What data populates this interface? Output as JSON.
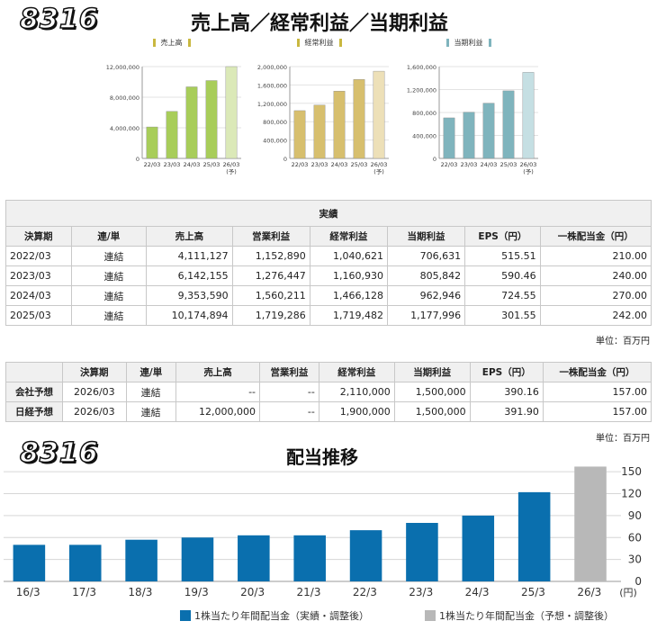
{
  "header": {
    "code": "8316",
    "title": "売上高／経常利益／当期利益"
  },
  "mini_charts": [
    {
      "title": "売上高",
      "color": "#a8cd5a",
      "forecast_color": "#dbe9b8",
      "bar_color": "#c9b840",
      "yticks": [
        "12,000,000",
        "8,000,000",
        "4,000,000",
        "0"
      ],
      "ymax": 12000000
    },
    {
      "title": "経常利益",
      "color": "#d7bf6e",
      "forecast_color": "#ede0b8",
      "bar_color": "#c9b840",
      "yticks": [
        "2,000,000",
        "1,600,000",
        "1,200,000",
        "800,000",
        "400,000",
        "0"
      ],
      "ymax": 2000000
    },
    {
      "title": "当期利益",
      "color": "#7fb4bd",
      "forecast_color": "#c5dfe3",
      "bar_color": "#7fb4bd",
      "yticks": [
        "1,600,000",
        "1,200,000",
        "800,000",
        "400,000",
        "0"
      ],
      "ymax": 1600000
    }
  ],
  "chart_data": [
    {
      "type": "bar",
      "title": "売上高",
      "categories": [
        "22/03",
        "23/03",
        "24/03",
        "25/03",
        "26/03"
      ],
      "forecast_note": "(予)",
      "values": [
        4111127,
        6142155,
        9353590,
        10174894,
        12000000
      ],
      "ylim": [
        0,
        12000000
      ]
    },
    {
      "type": "bar",
      "title": "経常利益",
      "categories": [
        "22/03",
        "23/03",
        "24/03",
        "25/03",
        "26/03"
      ],
      "forecast_note": "(予)",
      "values": [
        1040621,
        1160930,
        1466128,
        1719482,
        1900000
      ],
      "ylim": [
        0,
        2000000
      ]
    },
    {
      "type": "bar",
      "title": "当期利益",
      "categories": [
        "22/03",
        "23/03",
        "24/03",
        "25/03",
        "26/03"
      ],
      "forecast_note": "(予)",
      "values": [
        706631,
        805842,
        962946,
        1177996,
        1500000
      ],
      "ylim": [
        0,
        1600000
      ]
    },
    {
      "type": "bar",
      "title": "配当推移",
      "categories": [
        "16/3",
        "17/3",
        "18/3",
        "19/3",
        "20/3",
        "21/3",
        "22/3",
        "23/3",
        "24/3",
        "25/3",
        "26/3"
      ],
      "values": [
        50,
        50,
        57,
        60,
        63,
        63,
        70,
        80,
        90,
        122,
        157
      ],
      "forecast_index": 10,
      "ylim": [
        0,
        157
      ],
      "yticks": [
        0,
        30,
        60,
        90,
        120,
        150
      ],
      "yunit": "(円)",
      "legend": [
        "1株当たり年間配当金（実績・調整後）",
        "1株当たり年間配当金（予想・調整後）"
      ],
      "colors": {
        "actual": "#0a6fae",
        "forecast": "#b8b8b8"
      }
    }
  ],
  "results_table": {
    "caption": "実績",
    "headers": [
      "決算期",
      "連/単",
      "売上高",
      "営業利益",
      "経常利益",
      "当期利益",
      "EPS（円）",
      "一株配当金（円）"
    ],
    "rows": [
      [
        "2022/03",
        "連結",
        "4,111,127",
        "1,152,890",
        "1,040,621",
        "706,631",
        "515.51",
        "210.00"
      ],
      [
        "2023/03",
        "連結",
        "6,142,155",
        "1,276,447",
        "1,160,930",
        "805,842",
        "590.46",
        "240.00"
      ],
      [
        "2024/03",
        "連結",
        "9,353,590",
        "1,560,211",
        "1,466,128",
        "962,946",
        "724.55",
        "270.00"
      ],
      [
        "2025/03",
        "連結",
        "10,174,894",
        "1,719,286",
        "1,719,482",
        "1,177,996",
        "301.55",
        "242.00"
      ]
    ],
    "unit": "単位：百万円"
  },
  "forecast_table": {
    "headers": [
      "",
      "決算期",
      "連/単",
      "売上高",
      "営業利益",
      "経常利益",
      "当期利益",
      "EPS（円）",
      "一株配当金（円）"
    ],
    "rows": [
      [
        "会社予想",
        "2026/03",
        "連結",
        "--",
        "--",
        "2,110,000",
        "1,500,000",
        "390.16",
        "157.00"
      ],
      [
        "日経予想",
        "2026/03",
        "連結",
        "12,000,000",
        "--",
        "1,900,000",
        "1,500,000",
        "391.90",
        "157.00"
      ]
    ],
    "unit": "単位：百万円"
  },
  "dividend_section": {
    "code": "8316",
    "title": "配当推移"
  }
}
